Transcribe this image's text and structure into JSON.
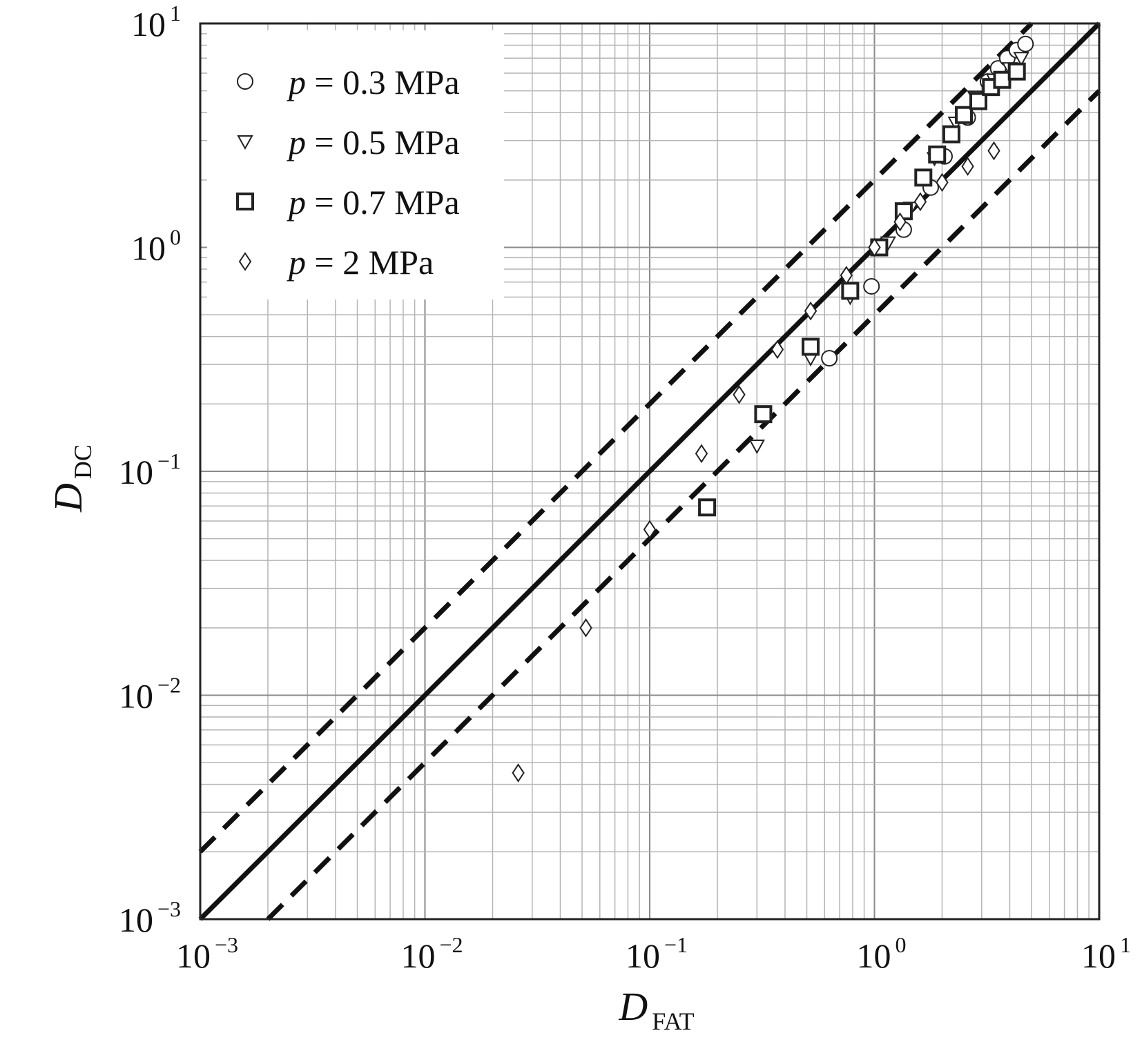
{
  "chart_data": {
    "type": "scatter",
    "title": "",
    "xlabel": {
      "main": "D",
      "sub": "FAT"
    },
    "ylabel": {
      "main": "D",
      "sub": "DC"
    },
    "xscale": "log",
    "yscale": "log",
    "xlim": [
      0.001,
      10
    ],
    "ylim": [
      0.001,
      10
    ],
    "grid": true,
    "legend_position": "top-left",
    "x_ticks": [
      {
        "value": 0.001,
        "base": "10",
        "exp": "−3"
      },
      {
        "value": 0.01,
        "base": "10",
        "exp": "−2"
      },
      {
        "value": 0.1,
        "base": "10",
        "exp": "−1"
      },
      {
        "value": 1,
        "base": "10",
        "exp": "0"
      },
      {
        "value": 10,
        "base": "10",
        "exp": "1"
      }
    ],
    "y_ticks": [
      {
        "value": 0.001,
        "base": "10",
        "exp": "−3"
      },
      {
        "value": 0.01,
        "base": "10",
        "exp": "−2"
      },
      {
        "value": 0.1,
        "base": "10",
        "exp": "−1"
      },
      {
        "value": 1,
        "base": "10",
        "exp": "0"
      },
      {
        "value": 10,
        "base": "10",
        "exp": "1"
      }
    ],
    "reference_lines": [
      {
        "style": "solid",
        "slope": 1,
        "factor": 1
      },
      {
        "style": "dashed",
        "slope": 1,
        "factor": 2
      },
      {
        "style": "dashed",
        "slope": 1,
        "factor": 0.5
      }
    ],
    "series": [
      {
        "name": "p = 0.3 MPa",
        "legend_p": "p",
        "legend_rest": " = 0.3 MPa",
        "marker": "circle",
        "points": [
          [
            0.63,
            0.32
          ],
          [
            0.97,
            0.67
          ],
          [
            1.35,
            1.2
          ],
          [
            1.78,
            1.85
          ],
          [
            2.05,
            2.55
          ],
          [
            2.6,
            3.8
          ],
          [
            3.2,
            5.5
          ],
          [
            3.55,
            6.3
          ],
          [
            3.9,
            7.0
          ],
          [
            4.3,
            7.6
          ],
          [
            4.7,
            8.1
          ]
        ]
      },
      {
        "name": "p = 0.5 MPa",
        "legend_p": "p",
        "legend_rest": " = 0.5 MPa",
        "marker": "triangle-down",
        "points": [
          [
            0.3,
            0.13
          ],
          [
            0.52,
            0.32
          ],
          [
            0.78,
            0.6
          ],
          [
            1.15,
            1.05
          ],
          [
            1.45,
            1.5
          ],
          [
            1.85,
            2.5
          ],
          [
            2.3,
            3.6
          ],
          [
            2.8,
            4.7
          ],
          [
            3.4,
            5.6
          ],
          [
            4.0,
            6.3
          ],
          [
            4.5,
            7.0
          ]
        ]
      },
      {
        "name": "p = 0.7 MPa",
        "legend_p": "p",
        "legend_rest": " = 0.7 MPa",
        "marker": "square",
        "points": [
          [
            0.18,
            0.069
          ],
          [
            0.32,
            0.18
          ],
          [
            0.52,
            0.36
          ],
          [
            0.78,
            0.64
          ],
          [
            1.05,
            1.0
          ],
          [
            1.35,
            1.45
          ],
          [
            1.65,
            2.05
          ],
          [
            1.9,
            2.6
          ],
          [
            2.2,
            3.2
          ],
          [
            2.5,
            3.9
          ],
          [
            2.9,
            4.5
          ],
          [
            3.3,
            5.2
          ],
          [
            3.7,
            5.6
          ],
          [
            4.3,
            6.1
          ]
        ]
      },
      {
        "name": "p = 2 MPa",
        "legend_p": "p",
        "legend_rest": " = 2 MPa",
        "marker": "diamond",
        "points": [
          [
            0.026,
            0.0045
          ],
          [
            0.052,
            0.02
          ],
          [
            0.1,
            0.055
          ],
          [
            0.17,
            0.12
          ],
          [
            0.25,
            0.22
          ],
          [
            0.37,
            0.35
          ],
          [
            0.52,
            0.52
          ],
          [
            0.75,
            0.75
          ],
          [
            1.0,
            1.0
          ],
          [
            1.3,
            1.3
          ],
          [
            1.6,
            1.6
          ],
          [
            2.0,
            1.95
          ],
          [
            2.6,
            2.3
          ],
          [
            3.4,
            2.7
          ]
        ]
      }
    ]
  }
}
